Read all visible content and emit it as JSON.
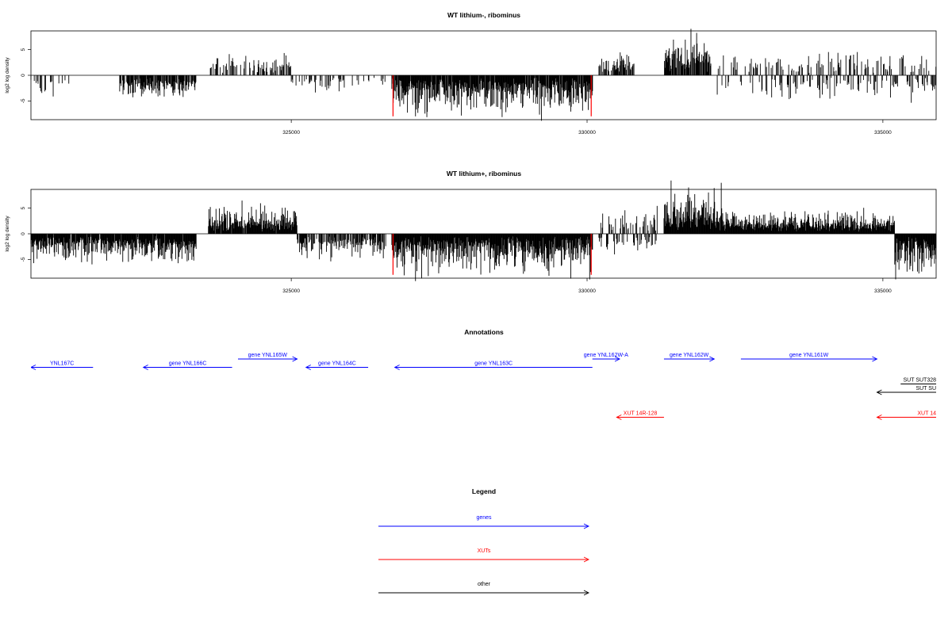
{
  "colors": {
    "gene": "#0000ff",
    "xut": "#ff0000",
    "other": "#000000",
    "boundary": "#ff0000",
    "bar": "#000000"
  },
  "chart_data": [
    {
      "type": "bar",
      "title": "WT lithium-, ribominus",
      "ylabel": "log2 log density",
      "xlim": [
        320600,
        335900
      ],
      "ylim": [
        -8.5,
        8.5
      ],
      "x_ticks": [
        325000,
        330000,
        335000
      ],
      "y_ticks": [
        -5,
        0,
        5
      ],
      "boundaries": [
        326720,
        330070
      ],
      "profile": [
        {
          "from": 320600,
          "to": 321300,
          "density": 0.25,
          "sign": -1,
          "max": 3
        },
        {
          "from": 322100,
          "to": 323400,
          "density": 0.8,
          "sign": -1,
          "max": 4
        },
        {
          "from": 323600,
          "to": 325000,
          "density": 0.35,
          "sign": 1,
          "max": 4
        },
        {
          "from": 325000,
          "to": 325900,
          "density": 0.3,
          "sign": -1,
          "max": 3
        },
        {
          "from": 326000,
          "to": 326600,
          "density": 0.2,
          "sign": -1,
          "max": 2
        },
        {
          "from": 326700,
          "to": 330100,
          "density": 0.95,
          "sign": -1,
          "max": 7
        },
        {
          "from": 330200,
          "to": 330800,
          "density": 0.5,
          "sign": 1,
          "max": 4
        },
        {
          "from": 331300,
          "to": 332100,
          "density": 0.8,
          "sign": 1,
          "max": 8
        },
        {
          "from": 332200,
          "to": 335900,
          "density": 0.5,
          "sign": 0,
          "max": 4
        }
      ]
    },
    {
      "type": "bar",
      "title": "WT lithium+, ribominus",
      "ylabel": "log2 log density",
      "xlim": [
        320600,
        335900
      ],
      "ylim": [
        -8.5,
        8.5
      ],
      "x_ticks": [
        325000,
        330000,
        335000
      ],
      "y_ticks": [
        -5,
        0,
        5
      ],
      "boundaries": [
        326720,
        330070
      ],
      "profile": [
        {
          "from": 320600,
          "to": 323400,
          "density": 0.95,
          "sign": -1,
          "max": 5
        },
        {
          "from": 323600,
          "to": 325100,
          "density": 0.95,
          "sign": 1,
          "max": 5
        },
        {
          "from": 325100,
          "to": 326600,
          "density": 0.7,
          "sign": -1,
          "max": 4
        },
        {
          "from": 326700,
          "to": 330100,
          "density": 1.0,
          "sign": -1,
          "max": 7
        },
        {
          "from": 330200,
          "to": 331200,
          "density": 0.6,
          "sign": 0,
          "max": 4
        },
        {
          "from": 331300,
          "to": 332300,
          "density": 1.0,
          "sign": 1,
          "max": 8
        },
        {
          "from": 332300,
          "to": 335200,
          "density": 1.0,
          "sign": 1,
          "max": 4
        },
        {
          "from": 335200,
          "to": 335900,
          "density": 1.0,
          "sign": -1,
          "max": 7
        }
      ]
    }
  ],
  "annotations": {
    "title": "Annotations",
    "items": [
      {
        "label": "YNL167C",
        "kind": "gene",
        "strand": "-",
        "start": 320600,
        "end": 321650,
        "row": 1
      },
      {
        "label": "gene YNL166C",
        "kind": "gene",
        "strand": "-",
        "start": 322500,
        "end": 324000,
        "row": 1
      },
      {
        "label": "gene YNL165W",
        "kind": "gene",
        "strand": "+",
        "start": 324100,
        "end": 325100,
        "row": 0
      },
      {
        "label": "gene YNL164C",
        "kind": "gene",
        "strand": "-",
        "start": 325250,
        "end": 326300,
        "row": 1
      },
      {
        "label": "gene YNL163C",
        "kind": "gene",
        "strand": "-",
        "start": 326750,
        "end": 330090,
        "row": 1
      },
      {
        "label": "gene YNL162W-A",
        "kind": "gene",
        "strand": "+",
        "start": 330090,
        "end": 330550,
        "row": 0
      },
      {
        "label": "gene YNL162W",
        "kind": "gene",
        "strand": "+",
        "start": 331300,
        "end": 332150,
        "row": 0
      },
      {
        "label": "gene YNL161W",
        "kind": "gene",
        "strand": "+",
        "start": 332600,
        "end": 334900,
        "row": 0
      },
      {
        "label": "SUT SUT328",
        "kind": "other",
        "strand": "+",
        "start": 335300,
        "end": 336200,
        "row": 3
      },
      {
        "label": "SUT SU",
        "kind": "other",
        "strand": "-",
        "start": 334900,
        "end": 336200,
        "row": 4
      },
      {
        "label": "XUT 14R-128",
        "kind": "xut",
        "strand": "-",
        "start": 330500,
        "end": 331300,
        "row": 7
      },
      {
        "label": "XUT 14",
        "kind": "xut",
        "strand": "-",
        "start": 334900,
        "end": 336200,
        "row": 7
      }
    ]
  },
  "legend": {
    "title": "Legend",
    "entries": [
      {
        "label": "genes",
        "kind": "gene"
      },
      {
        "label": "XUTs",
        "kind": "xut"
      },
      {
        "label": "other",
        "kind": "other"
      }
    ]
  }
}
